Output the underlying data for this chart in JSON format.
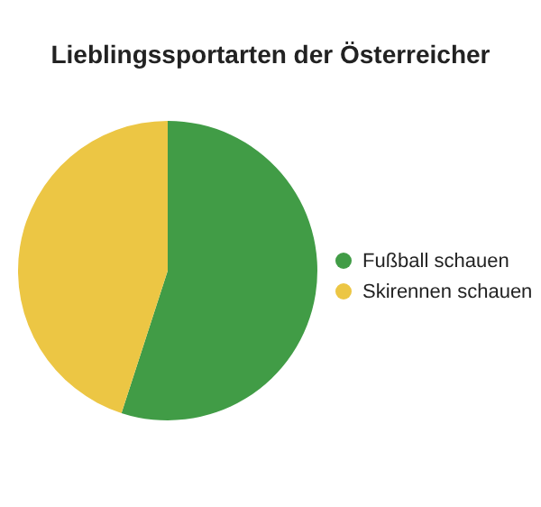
{
  "chart_data": {
    "type": "pie",
    "title": "Lieblingssportarten der Österreicher",
    "categories": [
      "Fußball schauen",
      "Skirennen schauen"
    ],
    "values": [
      55,
      45
    ],
    "colors": [
      "#419c46",
      "#ecc644"
    ],
    "legend": "right"
  }
}
